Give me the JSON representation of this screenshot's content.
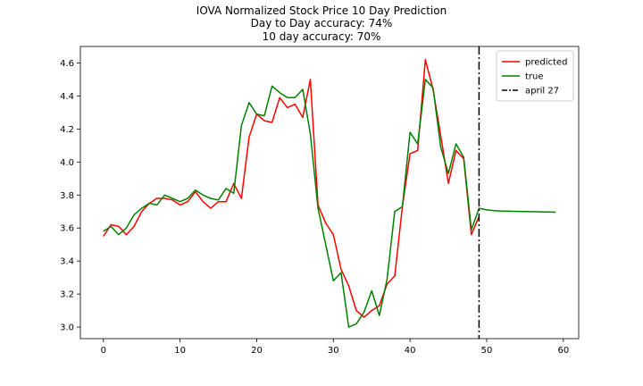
{
  "chart_data": {
    "type": "line",
    "title": "IOVA Normalized Stock Price 10 Day Prediction",
    "subtitle_lines": [
      "Day to Day accuracy: 74%",
      "10 day accuracy: 70%"
    ],
    "xlabel": "",
    "ylabel": "",
    "xlim": [
      -3,
      62
    ],
    "ylim": [
      2.93,
      4.7
    ],
    "xticks": [
      0,
      10,
      20,
      30,
      40,
      50,
      60
    ],
    "xtick_labels": [
      "0",
      "10",
      "20",
      "30",
      "40",
      "50",
      "60"
    ],
    "yticks": [
      3.0,
      3.2,
      3.4,
      3.6,
      3.8,
      4.0,
      4.2,
      4.4,
      4.6
    ],
    "ytick_labels": [
      "3.0",
      "3.2",
      "3.4",
      "3.6",
      "3.8",
      "4.0",
      "4.2",
      "4.4",
      "4.6"
    ],
    "grid": false,
    "legend_position": "top-right",
    "series": [
      {
        "name": "predicted",
        "color": "#ff0000",
        "style": "solid",
        "x": [
          0,
          1,
          2,
          3,
          4,
          5,
          6,
          7,
          8,
          9,
          10,
          11,
          12,
          13,
          14,
          15,
          16,
          17,
          18,
          19,
          20,
          21,
          22,
          23,
          24,
          25,
          26,
          27,
          28,
          29,
          30,
          31,
          32,
          33,
          34,
          35,
          36,
          37,
          38,
          39,
          40,
          41,
          42,
          43,
          44,
          45,
          46,
          47,
          48,
          49
        ],
        "y": [
          3.55,
          3.62,
          3.61,
          3.56,
          3.61,
          3.7,
          3.75,
          3.78,
          3.78,
          3.77,
          3.74,
          3.76,
          3.82,
          3.76,
          3.72,
          3.76,
          3.76,
          3.87,
          3.78,
          4.15,
          4.29,
          4.25,
          4.24,
          4.39,
          4.33,
          4.35,
          4.27,
          4.5,
          3.74,
          3.63,
          3.56,
          3.35,
          3.25,
          3.1,
          3.06,
          3.1,
          3.13,
          3.26,
          3.31,
          3.73,
          4.05,
          4.07,
          4.62,
          4.44,
          4.16,
          3.87,
          4.07,
          4.02,
          3.56,
          3.67
        ]
      },
      {
        "name": "true",
        "color": "#008000",
        "style": "solid",
        "x": [
          0,
          1,
          2,
          3,
          4,
          5,
          6,
          7,
          8,
          9,
          10,
          11,
          12,
          13,
          14,
          15,
          16,
          17,
          18,
          19,
          20,
          21,
          22,
          23,
          24,
          25,
          26,
          27,
          28,
          29,
          30,
          31,
          32,
          33,
          34,
          35,
          36,
          37,
          38,
          39,
          40,
          41,
          42,
          43,
          44,
          45,
          46,
          47,
          48,
          49,
          50,
          51,
          52,
          53,
          54,
          55,
          56,
          57,
          58,
          59
        ],
        "y": [
          3.58,
          3.61,
          3.56,
          3.6,
          3.68,
          3.72,
          3.75,
          3.74,
          3.8,
          3.78,
          3.76,
          3.78,
          3.83,
          3.8,
          3.78,
          3.77,
          3.84,
          3.81,
          4.22,
          4.36,
          4.29,
          4.28,
          4.46,
          4.42,
          4.39,
          4.39,
          4.44,
          4.17,
          3.72,
          3.5,
          3.28,
          3.33,
          3.0,
          3.02,
          3.09,
          3.22,
          3.07,
          3.29,
          3.7,
          3.73,
          4.18,
          4.11,
          4.5,
          4.45,
          4.09,
          3.93,
          4.11,
          4.03,
          3.59,
          3.72,
          3.71,
          3.705,
          3.703,
          3.702,
          3.701,
          3.7,
          3.699,
          3.698,
          3.697,
          3.696
        ]
      },
      {
        "name": "april 27",
        "color": "#000000",
        "style": "dashdot",
        "vline_x": 49
      }
    ]
  }
}
